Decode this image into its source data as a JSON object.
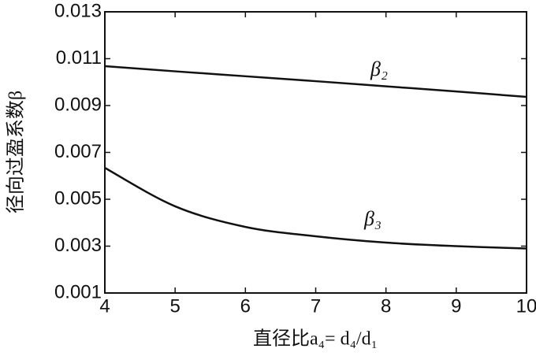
{
  "chart_data": {
    "type": "line",
    "x_label": "直径比a₄= d₄/d₁",
    "y_label": "径向过盈系数β",
    "x": [
      4,
      5,
      6,
      7,
      8,
      9,
      10
    ],
    "series": [
      {
        "name": "β₂",
        "color": "#111111",
        "values": [
          0.01068,
          0.01046,
          0.01025,
          0.01004,
          0.00982,
          0.0096,
          0.00937
        ]
      },
      {
        "name": "β₃",
        "color": "#111111",
        "values": [
          0.00634,
          0.0047,
          0.00382,
          0.00342,
          0.00315,
          0.003,
          0.0029
        ]
      }
    ],
    "xlim": [
      4,
      10
    ],
    "xticks": [
      4,
      5,
      6,
      7,
      8,
      9,
      10
    ],
    "ylim": [
      0.001,
      0.013
    ],
    "yticks": [
      0.001,
      0.003,
      0.005,
      0.007,
      0.009,
      0.011,
      0.013
    ],
    "grid": false
  }
}
